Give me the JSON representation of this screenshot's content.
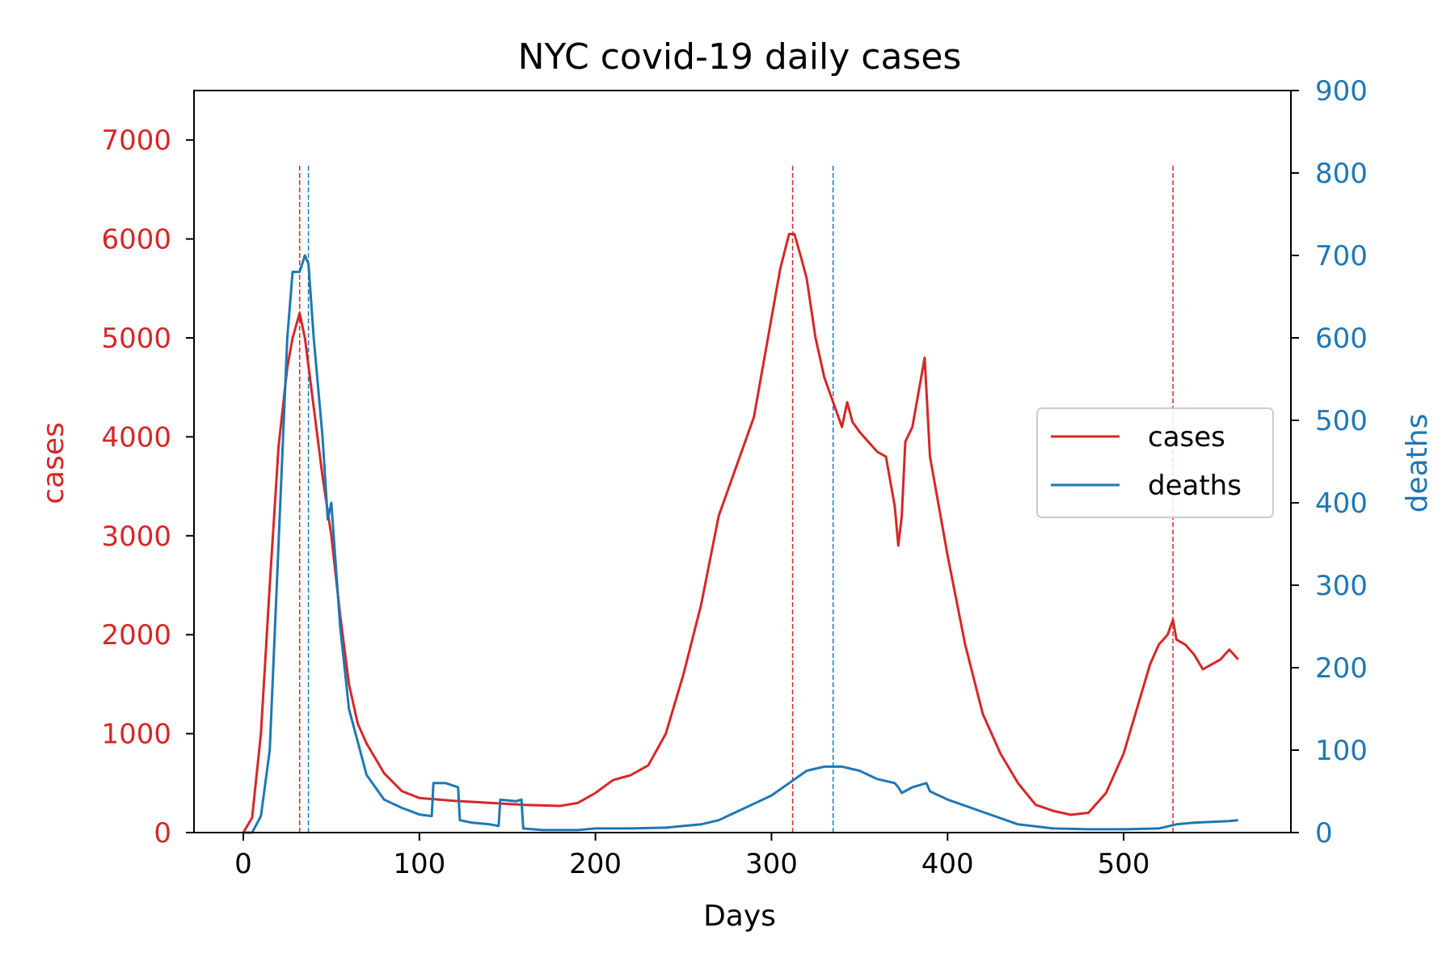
{
  "chart_data": {
    "type": "line",
    "title": "NYC covid-19 daily cases",
    "xlabel": "Days",
    "ylabel_left": "cases",
    "ylabel_right": "deaths",
    "xlim": [
      -28,
      595
    ],
    "ylim_left": [
      0,
      7500
    ],
    "ylim_right": [
      0,
      900
    ],
    "x_ticks": [
      0,
      100,
      200,
      300,
      400,
      500
    ],
    "y_ticks_left": [
      0,
      1000,
      2000,
      3000,
      4000,
      5000,
      6000,
      7000
    ],
    "y_ticks_right": [
      0,
      100,
      200,
      300,
      400,
      500,
      600,
      700,
      800,
      900
    ],
    "grid": false,
    "legend_position": "right",
    "colors": {
      "cases": "#d62728",
      "deaths": "#1f77b4"
    },
    "series": [
      {
        "name": "cases",
        "axis": "left",
        "x": [
          0,
          5,
          10,
          15,
          20,
          25,
          28,
          32,
          35,
          40,
          45,
          50,
          55,
          60,
          65,
          70,
          80,
          90,
          100,
          120,
          140,
          160,
          180,
          190,
          200,
          210,
          220,
          230,
          240,
          250,
          260,
          270,
          280,
          290,
          300,
          305,
          310,
          313,
          317,
          320,
          325,
          330,
          335,
          340,
          343,
          346,
          350,
          355,
          360,
          365,
          370,
          372,
          374,
          376,
          380,
          385,
          387,
          390,
          395,
          400,
          410,
          420,
          430,
          440,
          450,
          460,
          470,
          480,
          490,
          500,
          510,
          515,
          520,
          525,
          528,
          530,
          535,
          540,
          545,
          550,
          555,
          560,
          565
        ],
        "y": [
          0,
          150,
          1000,
          2500,
          3900,
          4700,
          5000,
          5250,
          5000,
          4300,
          3600,
          3000,
          2200,
          1500,
          1100,
          900,
          600,
          420,
          350,
          320,
          300,
          280,
          270,
          300,
          400,
          530,
          580,
          680,
          1000,
          1600,
          2300,
          3200,
          3700,
          4200,
          5200,
          5700,
          6050,
          6050,
          5800,
          5600,
          5000,
          4600,
          4350,
          4100,
          4350,
          4150,
          4050,
          3950,
          3850,
          3800,
          3300,
          2900,
          3200,
          3950,
          4100,
          4600,
          4800,
          3800,
          3300,
          2800,
          1900,
          1200,
          800,
          500,
          280,
          220,
          180,
          200,
          400,
          800,
          1400,
          1700,
          1900,
          2000,
          2150,
          1950,
          1900,
          1800,
          1650,
          1700,
          1750,
          1850,
          1750
        ]
      },
      {
        "name": "deaths",
        "axis": "right",
        "x": [
          0,
          5,
          10,
          15,
          20,
          25,
          28,
          32,
          35,
          37,
          40,
          45,
          48,
          50,
          55,
          60,
          65,
          70,
          80,
          90,
          100,
          107,
          108,
          115,
          122,
          123,
          130,
          140,
          145,
          146,
          155,
          158,
          159,
          170,
          180,
          190,
          200,
          220,
          240,
          260,
          270,
          280,
          290,
          300,
          310,
          320,
          330,
          335,
          340,
          350,
          360,
          370,
          372,
          374,
          380,
          388,
          390,
          400,
          420,
          440,
          460,
          480,
          500,
          520,
          530,
          540,
          550,
          560,
          565
        ],
        "y": [
          0,
          0,
          20,
          100,
          350,
          600,
          680,
          680,
          700,
          690,
          600,
          480,
          380,
          400,
          250,
          150,
          110,
          70,
          40,
          30,
          22,
          20,
          60,
          60,
          55,
          15,
          12,
          10,
          8,
          40,
          38,
          40,
          5,
          3,
          3,
          3,
          5,
          5,
          6,
          10,
          15,
          25,
          35,
          45,
          60,
          75,
          80,
          80,
          80,
          75,
          65,
          60,
          55,
          48,
          55,
          60,
          50,
          40,
          25,
          10,
          5,
          4,
          4,
          5,
          10,
          12,
          13,
          14,
          15
        ]
      }
    ],
    "annotations": {
      "vlines": [
        {
          "x": 32,
          "series": "cases"
        },
        {
          "x": 37,
          "series": "deaths"
        },
        {
          "x": 312,
          "series": "cases"
        },
        {
          "x": 335,
          "series": "deaths"
        },
        {
          "x": 528,
          "series": "cases"
        }
      ]
    }
  }
}
